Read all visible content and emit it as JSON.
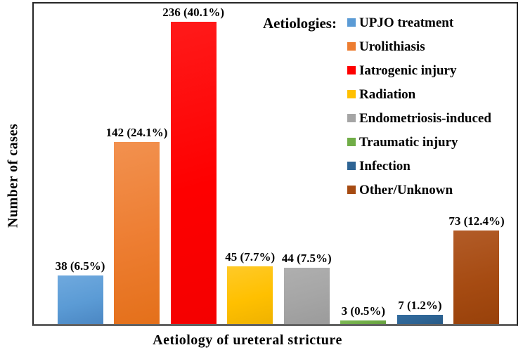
{
  "chart_data": {
    "type": "bar",
    "title": "",
    "xlabel": "Aetiology of ureteral stricture",
    "ylabel": "Number of cases",
    "legend_title": "Aetiologies:",
    "legend_position": "upper-right",
    "grid": false,
    "ylim": [
      0,
      250
    ],
    "categories": [
      "UPJO treatment",
      "Urolithiasis",
      "Iatrogenic injury",
      "Radiation",
      "Endometriosis-induced",
      "Traumatic injury",
      "Infection",
      "Other/Unknown"
    ],
    "values": [
      38,
      142,
      236,
      45,
      44,
      3,
      7,
      73
    ],
    "percentages": [
      6.5,
      24.1,
      40.1,
      7.7,
      7.5,
      0.5,
      1.2,
      12.4
    ],
    "bar_labels": [
      "38 (6.5%)",
      "142 (24.1%)",
      "236 (40.1%)",
      "45 (7.7%)",
      "44 (7.5%)",
      "3 (0.5%)",
      "7 (1.2%)",
      "73 (12.4%)"
    ],
    "colors": [
      {
        "base": "#5B9BD5",
        "light": "#6FA9DE",
        "dark": "#4B87C3"
      },
      {
        "base": "#ED7D31",
        "light": "#F2914F",
        "dark": "#E4701A"
      },
      {
        "base": "#FE0000",
        "light": "#FF1A1A",
        "dark": "#F40000"
      },
      {
        "base": "#FFC000",
        "light": "#FFCA28",
        "dark": "#EFB200"
      },
      {
        "base": "#A5A5A5",
        "light": "#AFAFAF",
        "dark": "#9B9B9B"
      },
      {
        "base": "#70AD47",
        "light": "#7FBA57",
        "dark": "#66A03F"
      },
      {
        "base": "#2E6494",
        "light": "#336C9E",
        "dark": "#285A86"
      },
      {
        "base": "#A64B12",
        "light": "#B25C28",
        "dark": "#98410A"
      }
    ],
    "frame_color": "#262626",
    "baseline_color": "#636363",
    "text_color": "#000000"
  }
}
